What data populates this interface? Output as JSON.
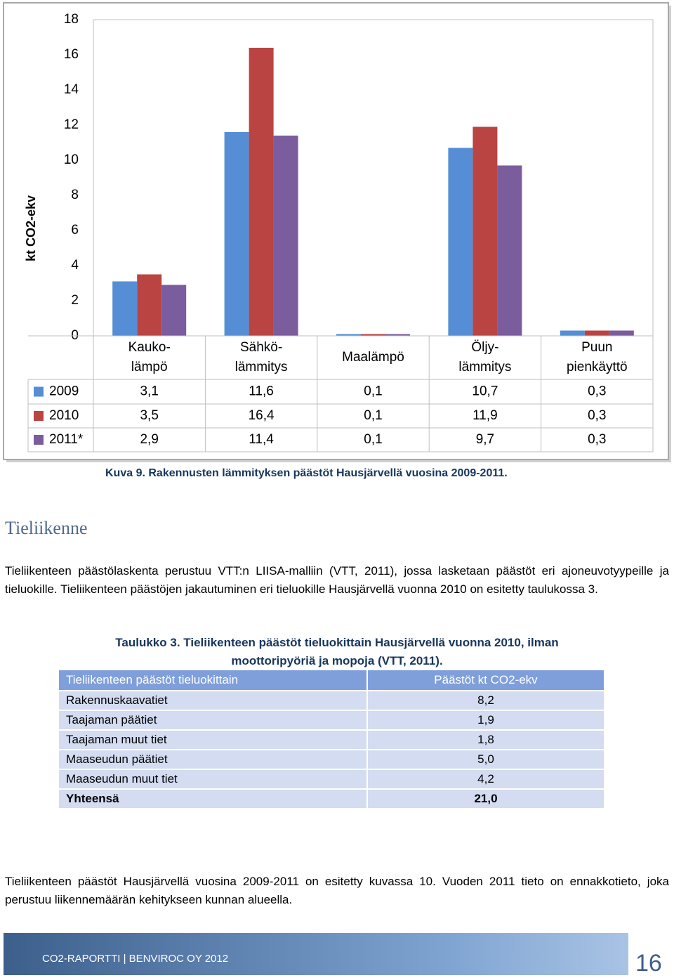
{
  "chart_data": {
    "type": "bar",
    "y_label": "kt CO2-ekv",
    "categories": [
      "Kauko-\nlämpö",
      "Sähkö-\nlämmitys",
      "Maalämpö",
      "Öljy-\nlämmitys",
      "Puun\npienkäyttö"
    ],
    "series": [
      {
        "name": "2009",
        "color": "#558ed5",
        "values": [
          3.1,
          11.6,
          0.1,
          10.7,
          0.3
        ],
        "value_labels": [
          "3,1",
          "11,6",
          "0,1",
          "10,7",
          "0,3"
        ]
      },
      {
        "name": "2010",
        "color": "#b94442",
        "values": [
          3.5,
          16.4,
          0.1,
          11.9,
          0.3
        ],
        "value_labels": [
          "3,5",
          "16,4",
          "0,1",
          "11,9",
          "0,3"
        ]
      },
      {
        "name": "2011*",
        "color": "#7b5c9c",
        "values": [
          2.9,
          11.4,
          0.1,
          9.7,
          0.3
        ],
        "value_labels": [
          "2,9",
          "11,4",
          "0,1",
          "9,7",
          "0,3"
        ]
      }
    ],
    "ylim": [
      0,
      18
    ],
    "yticks": [
      0,
      2,
      4,
      6,
      8,
      10,
      12,
      14,
      16,
      18
    ],
    "grid": false,
    "data_table": true
  },
  "figure_caption": "Kuva 9. Rakennusten lämmityksen päästöt Hausjärvellä vuosina 2009-2011.",
  "heading": "Tieliikenne",
  "paragraph_1": "Tieliikenteen päästölaskenta perustuu VTT:n LIISA-malliin (VTT, 2011), jossa lasketaan päästöt eri ajoneuvotyypeille ja tieluokille. Tieliikenteen päästöjen jakautuminen eri tieluokille Hausjärvellä vuonna 2010 on esitetty taulukossa 3.",
  "table": {
    "caption": "Taulukko 3. Tieliikenteen päästöt tieluokittain Hausjärvellä vuonna 2010, ilman moottoripyöriä ja mopoja (VTT, 2011).",
    "header": [
      "Tieliikenteen päästöt tieluokittain",
      "Päästöt kt CO2-ekv"
    ],
    "rows": [
      [
        "Rakennuskaavatiet",
        "8,2"
      ],
      [
        "Taajaman päätiet",
        "1,9"
      ],
      [
        "Taajaman muut tiet",
        "1,8"
      ],
      [
        "Maaseudun päätiet",
        "5,0"
      ],
      [
        "Maaseudun muut tiet",
        "4,2"
      ],
      [
        "Yhteensä",
        "21,0"
      ]
    ]
  },
  "paragraph_2": "Tieliikenteen päästöt Hausjärvellä vuosina 2009-2011 on esitetty kuvassa 10. Vuoden 2011 tieto on ennakkotieto, joka perustuu liikennemäärän kehitykseen kunnan alueella.",
  "footer": {
    "text": "CO2-RAPORTTI | BENVIROC OY 2012",
    "page": "16"
  }
}
